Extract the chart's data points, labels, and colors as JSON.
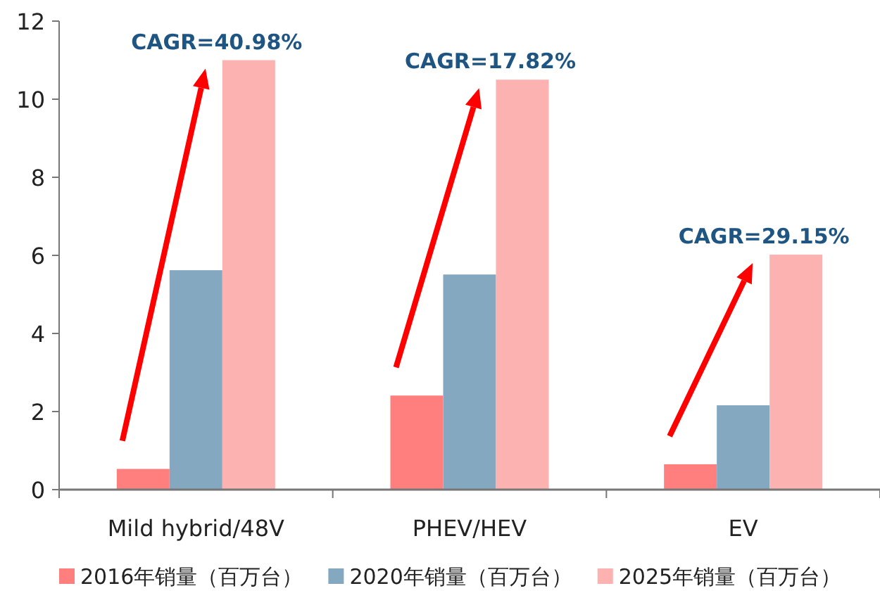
{
  "chart_data": {
    "type": "bar",
    "categories": [
      "Mild hybrid/48V",
      "PHEV/HEV",
      "EV"
    ],
    "series": [
      {
        "name": "2016年销量（百万台）",
        "color": "#ff7f7f",
        "values": [
          0.53,
          2.41,
          0.65
        ]
      },
      {
        "name": "2020年销量（百万台）",
        "color": "#84a8c0",
        "values": [
          5.62,
          5.51,
          2.16
        ]
      },
      {
        "name": "2025年销量（百万台）",
        "color": "#fdb2b2",
        "values": [
          11.0,
          10.5,
          6.02
        ]
      }
    ],
    "annotations": [
      "CAGR=40.98%",
      "CAGR=17.82%",
      "CAGR=29.15%"
    ],
    "ylim": [
      0,
      12
    ],
    "yticks": [
      0,
      2,
      4,
      6,
      8,
      10,
      12
    ],
    "grid": false,
    "legend": "bottom"
  }
}
